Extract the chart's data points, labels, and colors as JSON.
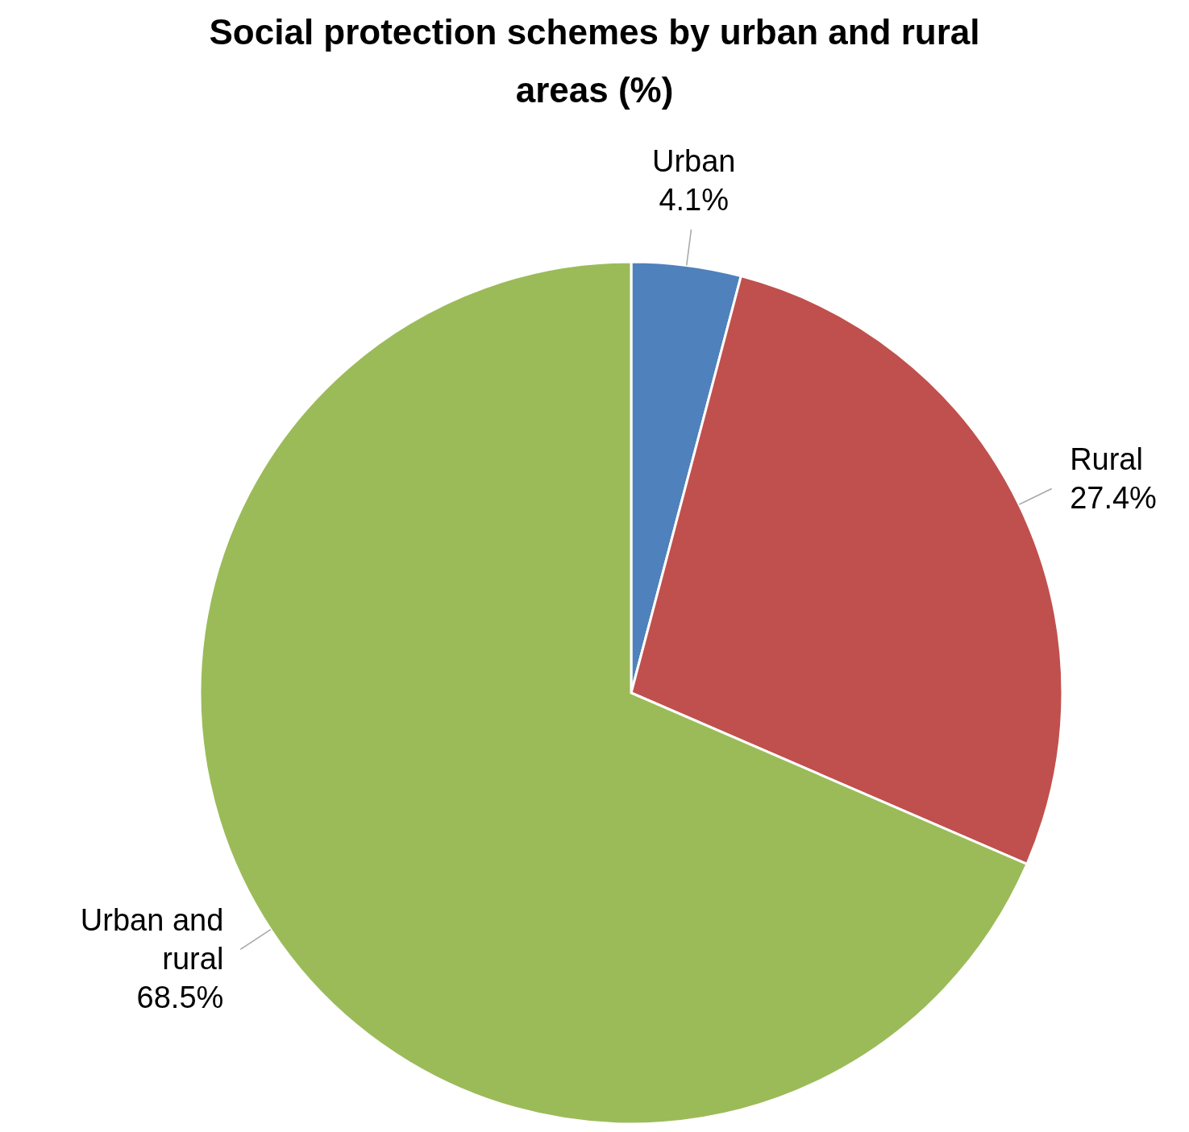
{
  "chart_data": {
    "type": "pie",
    "title": "Social protection schemes by urban and rural areas (%)",
    "categories": [
      "Urban",
      "Rural",
      "Urban and rural"
    ],
    "values": [
      4.1,
      27.4,
      68.5
    ],
    "colors": [
      "#4f81bd",
      "#c0504d",
      "#9bbb59"
    ],
    "value_labels": [
      "4.1%",
      "27.4%",
      "68.5%"
    ]
  }
}
